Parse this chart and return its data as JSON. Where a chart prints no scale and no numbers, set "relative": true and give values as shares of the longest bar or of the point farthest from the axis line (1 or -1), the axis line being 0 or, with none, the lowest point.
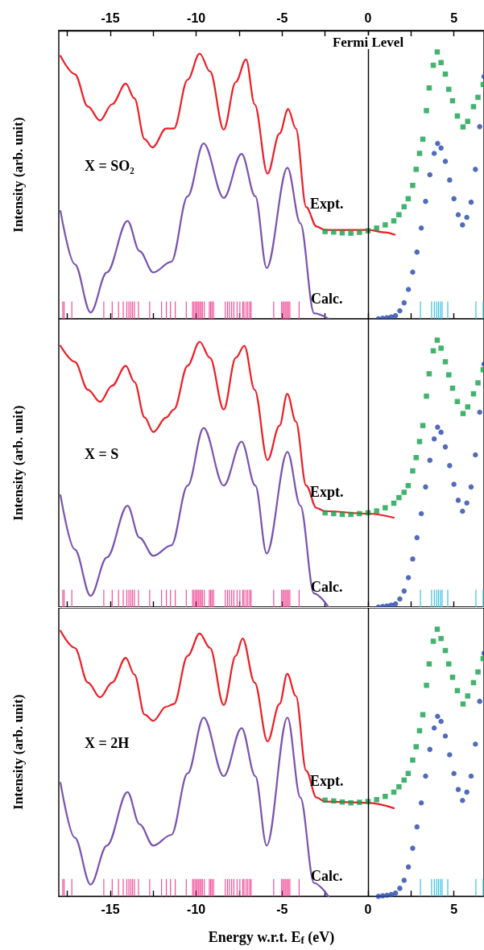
{
  "chart_data": [
    {
      "type": "line",
      "relative": true,
      "tick_labels": "x",
      "ylabel": "Intensity (arb. unit)",
      "xlim": [
        -18,
        6.75
      ],
      "xticks": [
        {
          "value": -17.5,
          "label": null
        },
        -15,
        {
          "value": -12.5,
          "label": null
        },
        -10,
        {
          "value": -7.5,
          "label": null
        },
        -5,
        {
          "value": -2.5,
          "label": null
        },
        0,
        {
          "value": 2.5,
          "label": null
        },
        5
      ],
      "annotations": [
        "X = SO₂",
        "Expt.",
        "Calc."
      ],
      "ref_lines": [
        {
          "axis": "x",
          "value": 0,
          "label": "Fermi Level",
          "color": "#000000"
        }
      ],
      "series": [
        {
          "color": "#ee1c24",
          "marker": "none",
          "x": [
            -17.9,
            -17.07,
            -16.3,
            -15.6,
            -14.9,
            -14.1,
            -13.6,
            -13.0,
            -12.55,
            -11.75,
            -11.3,
            -10.5,
            -9.8,
            -9.2,
            -8.4,
            -7.7,
            -7.1,
            -6.6,
            -5.85,
            -5.15,
            -4.65,
            -4.2,
            -3.6,
            -3.0,
            -2.5,
            0,
            1.0,
            1.55
          ],
          "values": [
            0.985,
            0.917,
            0.795,
            0.743,
            0.804,
            0.881,
            0.826,
            0.673,
            0.642,
            0.713,
            0.713,
            0.896,
            0.994,
            0.927,
            0.709,
            0.887,
            0.972,
            0.804,
            0.544,
            0.694,
            0.786,
            0.713,
            0.419,
            0.346,
            0.333,
            0.333,
            0.324,
            0.315
          ]
        },
        {
          "color": "#7a52b0",
          "marker": "none",
          "x": [
            -17.9,
            -17.07,
            -16.15,
            -15.2,
            -14.0,
            -13.3,
            -12.5,
            -11.45,
            -10.5,
            -9.57,
            -8.4,
            -7.36,
            -6.56,
            -5.9,
            -4.69,
            -3.94,
            -3.14,
            -2.3
          ],
          "values": [
            0.404,
            0.205,
            0.024,
            0.174,
            0.367,
            0.254,
            0.174,
            0.214,
            0.459,
            0.657,
            0.453,
            0.618,
            0.459,
            0.19,
            0.566,
            0.358,
            0.021,
            0
          ]
        },
        {
          "type": "scatter",
          "color": "#13a04b",
          "marker": "square",
          "x": [
            -2.5,
            -2.0,
            -1.5,
            -1.0,
            -0.5,
            0,
            0.5,
            1.0,
            1.5,
            1.8,
            2.1,
            2.34,
            2.6,
            2.8,
            3.0,
            3.19,
            3.4,
            3.56,
            3.8,
            4.03,
            4.25,
            4.5,
            4.7,
            4.92,
            5.2,
            5.53,
            5.8,
            6.14,
            6.4,
            6.7
          ],
          "values": [
            0.327,
            0.325,
            0.322,
            0.321,
            0.324,
            0.33,
            0.34,
            0.352,
            0.367,
            0.39,
            0.42,
            0.45,
            0.5,
            0.56,
            0.62,
            0.673,
            0.78,
            0.865,
            0.95,
            1.0,
            0.96,
            0.917,
            0.86,
            0.817,
            0.76,
            0.719,
            0.74,
            0.795,
            0.83,
            0.878
          ]
        },
        {
          "type": "scatter",
          "color": "#2446a8",
          "marker": "circle",
          "x": [
            0.6,
            0.85,
            1.1,
            1.35,
            1.6,
            1.85,
            2.1,
            2.35,
            2.6,
            2.85,
            3.1,
            3.35,
            3.6,
            3.85,
            4.05,
            4.25,
            4.5,
            4.75,
            5.0,
            5.25,
            5.5,
            5.75,
            6.0,
            6.25,
            6.5,
            6.75
          ],
          "values": [
            0,
            0.002,
            0.004,
            0.007,
            0.012,
            0.03,
            0.06,
            0.11,
            0.175,
            0.25,
            0.34,
            0.44,
            0.54,
            0.62,
            0.657,
            0.64,
            0.59,
            0.52,
            0.45,
            0.39,
            0.352,
            0.38,
            0.437,
            0.56,
            0.72,
            0.908
          ]
        },
        {
          "type": "bar",
          "color": "#f0509a",
          "x": [
            -17.77,
            -17.69,
            -17.24,
            -15.38,
            -14.89,
            -14.52,
            -14.25,
            -14.04,
            -13.92,
            -13.81,
            -13.71,
            -13.6,
            -13.36,
            -12.71,
            -12.02,
            -11.74,
            -11.5,
            -11.22,
            -10.58,
            -10.21,
            -10.13,
            -10.04,
            -9.96,
            -9.88,
            -9.8,
            -9.72,
            -9.64,
            -9.53,
            -9.24,
            -9.16,
            -9.08,
            -8.99,
            -8.31,
            -8.18,
            -8.07,
            -7.94,
            -7.81,
            -7.62,
            -7.46,
            -7.29,
            -7.22,
            -7.1,
            -7.0,
            -6.89,
            -6.81,
            -5.49,
            -5.03,
            -4.95,
            -4.87,
            -4.79,
            -4.71,
            -4.63,
            -4.55,
            -4.01
          ],
          "values": [
            0.065,
            0.065,
            0.065,
            0.065,
            0.065,
            0.065,
            0.065,
            0.065,
            0.065,
            0.065,
            0.065,
            0.065,
            0.065,
            0.065,
            0.065,
            0.065,
            0.065,
            0.065,
            0.065,
            0.065,
            0.065,
            0.065,
            0.065,
            0.065,
            0.065,
            0.065,
            0.065,
            0.065,
            0.065,
            0.065,
            0.065,
            0.065,
            0.065,
            0.065,
            0.065,
            0.065,
            0.065,
            0.065,
            0.065,
            0.065,
            0.065,
            0.065,
            0.065,
            0.065,
            0.065,
            0.065,
            0.065,
            0.065,
            0.065,
            0.065,
            0.065,
            0.065,
            0.065,
            0.065
          ]
        },
        {
          "type": "bar",
          "color": "#3cc0de",
          "x": [
            3.05,
            3.7,
            3.86,
            3.99,
            4.1,
            4.21,
            4.31,
            4.64,
            6.28,
            6.7
          ],
          "values": [
            0.065,
            0.065,
            0.065,
            0.065,
            0.065,
            0.065,
            0.065,
            0.065,
            0.065,
            0.065
          ]
        }
      ]
    },
    {
      "type": "line",
      "relative": true,
      "tick_labels": false,
      "ylabel": "Intensity (arb. unit)",
      "xlim": [
        -18,
        6.75
      ],
      "xticks": [
        {
          "value": -17.5,
          "label": null
        },
        -15,
        {
          "value": -12.5,
          "label": null
        },
        -10,
        {
          "value": -7.5,
          "label": null
        },
        -5,
        {
          "value": -2.5,
          "label": null
        },
        0,
        {
          "value": 2.5,
          "label": null
        },
        5
      ],
      "annotations": [
        "X = S",
        "Expt.",
        "Calc."
      ],
      "ref_lines": [
        {
          "axis": "x",
          "value": 0,
          "color": "#000000"
        }
      ],
      "series": [
        {
          "color": "#ee1c24",
          "marker": "none",
          "x": [
            -17.9,
            -17.07,
            -16.3,
            -15.6,
            -14.9,
            -14.1,
            -13.6,
            -13.0,
            -12.5,
            -11.75,
            -11.3,
            -10.5,
            -9.8,
            -9.2,
            -8.4,
            -7.7,
            -7.2,
            -6.6,
            -5.85,
            -5.15,
            -4.7,
            -4.2,
            -3.6,
            -3.0,
            -2.5,
            0,
            1.5
          ],
          "values": [
            0.979,
            0.919,
            0.814,
            0.769,
            0.829,
            0.904,
            0.844,
            0.71,
            0.656,
            0.71,
            0.74,
            0.904,
            0.994,
            0.934,
            0.74,
            0.934,
            0.979,
            0.814,
            0.551,
            0.68,
            0.799,
            0.695,
            0.455,
            0.371,
            0.359,
            0.35,
            0.335
          ]
        },
        {
          "color": "#7a52b0",
          "marker": "none",
          "x": [
            -17.9,
            -17.07,
            -16.15,
            -15.2,
            -14.0,
            -13.3,
            -12.5,
            -11.45,
            -10.5,
            -9.57,
            -8.4,
            -7.36,
            -6.56,
            -5.9,
            -4.69,
            -3.94,
            -3.14,
            -2.3
          ],
          "values": [
            0.419,
            0.216,
            0.042,
            0.186,
            0.38,
            0.26,
            0.192,
            0.231,
            0.455,
            0.671,
            0.455,
            0.62,
            0.455,
            0.201,
            0.581,
            0.38,
            0.051,
            0
          ]
        },
        {
          "type": "scatter",
          "color": "#13a04b",
          "marker": "square",
          "x": [
            -2.5,
            -2.0,
            -1.5,
            -1.0,
            -0.5,
            0,
            0.5,
            1.0,
            1.5,
            1.8,
            2.1,
            2.34,
            2.6,
            2.8,
            3.0,
            3.19,
            3.4,
            3.56,
            3.8,
            4.03,
            4.25,
            4.5,
            4.7,
            4.92,
            5.2,
            5.53,
            5.8,
            6.14,
            6.4,
            6.7
          ],
          "values": [
            0.353,
            0.35,
            0.347,
            0.347,
            0.35,
            0.353,
            0.36,
            0.372,
            0.389,
            0.41,
            0.43,
            0.455,
            0.51,
            0.56,
            0.62,
            0.68,
            0.79,
            0.874,
            0.96,
            1.0,
            0.97,
            0.919,
            0.87,
            0.82,
            0.77,
            0.725,
            0.75,
            0.799,
            0.84,
            0.889
          ]
        },
        {
          "type": "scatter",
          "color": "#2446a8",
          "marker": "circle",
          "x": [
            0.6,
            0.85,
            1.1,
            1.35,
            1.6,
            1.85,
            2.1,
            2.35,
            2.6,
            2.85,
            3.1,
            3.35,
            3.6,
            3.85,
            4.05,
            4.25,
            4.5,
            4.75,
            5.0,
            5.25,
            5.5,
            5.75,
            6.0,
            6.25,
            6.5,
            6.75
          ],
          "values": [
            0,
            0.002,
            0.004,
            0.007,
            0.012,
            0.03,
            0.06,
            0.11,
            0.18,
            0.26,
            0.35,
            0.45,
            0.55,
            0.63,
            0.674,
            0.655,
            0.6,
            0.53,
            0.46,
            0.4,
            0.359,
            0.39,
            0.45,
            0.57,
            0.73,
            0.91
          ]
        },
        {
          "type": "bar",
          "color": "#f0509a",
          "x": [
            -17.77,
            -17.69,
            -17.24,
            -15.38,
            -14.89,
            -14.52,
            -14.25,
            -14.04,
            -13.92,
            -13.81,
            -13.71,
            -13.6,
            -13.36,
            -12.71,
            -12.02,
            -11.74,
            -11.5,
            -11.22,
            -10.58,
            -10.21,
            -10.13,
            -10.04,
            -9.96,
            -9.88,
            -9.8,
            -9.72,
            -9.64,
            -9.53,
            -9.24,
            -9.16,
            -9.08,
            -8.99,
            -8.31,
            -8.18,
            -8.07,
            -7.94,
            -7.81,
            -7.62,
            -7.46,
            -7.29,
            -7.22,
            -7.1,
            -7.0,
            -6.89,
            -6.81,
            -5.49,
            -5.03,
            -4.95,
            -4.87,
            -4.79,
            -4.71,
            -4.63,
            -4.55,
            -4.01
          ],
          "values": [
            0.065,
            0.065,
            0.065,
            0.065,
            0.065,
            0.065,
            0.065,
            0.065,
            0.065,
            0.065,
            0.065,
            0.065,
            0.065,
            0.065,
            0.065,
            0.065,
            0.065,
            0.065,
            0.065,
            0.065,
            0.065,
            0.065,
            0.065,
            0.065,
            0.065,
            0.065,
            0.065,
            0.065,
            0.065,
            0.065,
            0.065,
            0.065,
            0.065,
            0.065,
            0.065,
            0.065,
            0.065,
            0.065,
            0.065,
            0.065,
            0.065,
            0.065,
            0.065,
            0.065,
            0.065,
            0.065,
            0.065,
            0.065,
            0.065,
            0.065,
            0.065,
            0.065,
            0.065,
            0.065
          ]
        },
        {
          "type": "bar",
          "color": "#3cc0de",
          "x": [
            3.05,
            3.7,
            3.86,
            3.99,
            4.1,
            4.21,
            4.31,
            4.64,
            6.28,
            6.7
          ],
          "values": [
            0.065,
            0.065,
            0.065,
            0.065,
            0.065,
            0.065,
            0.065,
            0.065,
            0.065,
            0.065
          ]
        }
      ]
    },
    {
      "type": "line",
      "relative": true,
      "tick_labels": "x",
      "ylabel": "Intensity (arb. unit)",
      "xlabel": "Energy w.r.t. E$_{f}$ (eV)",
      "xlim": [
        -18,
        6.75
      ],
      "xticks": [
        {
          "value": -17.5,
          "label": null
        },
        -15,
        {
          "value": -12.5,
          "label": null
        },
        -10,
        {
          "value": -7.5,
          "label": null
        },
        -5,
        {
          "value": -2.5,
          "label": null
        },
        0,
        {
          "value": 2.5,
          "label": null
        },
        5
      ],
      "annotations": [
        "X = 2H",
        "Expt.",
        "Calc."
      ],
      "ref_lines": [
        {
          "axis": "x",
          "value": 0,
          "color": "#000000"
        }
      ],
      "series": [
        {
          "color": "#ee1c24",
          "marker": "none",
          "x": [
            -17.9,
            -17.07,
            -16.3,
            -15.6,
            -14.9,
            -14.1,
            -13.6,
            -13.0,
            -12.5,
            -11.75,
            -11.3,
            -10.5,
            -9.8,
            -9.2,
            -8.4,
            -7.7,
            -7.3,
            -6.6,
            -5.85,
            -5.15,
            -4.7,
            -4.2,
            -3.6,
            -3.0,
            -2.5,
            0,
            1.5
          ],
          "values": [
            0.994,
            0.93,
            0.8,
            0.745,
            0.8,
            0.893,
            0.83,
            0.68,
            0.657,
            0.71,
            0.72,
            0.9,
            0.984,
            0.93,
            0.716,
            0.9,
            0.965,
            0.8,
            0.58,
            0.72,
            0.833,
            0.75,
            0.47,
            0.37,
            0.355,
            0.35,
            0.33
          ]
        },
        {
          "color": "#7a52b0",
          "marker": "none",
          "x": [
            -17.9,
            -17.07,
            -16.15,
            -15.2,
            -14.0,
            -13.3,
            -12.5,
            -11.45,
            -10.5,
            -9.57,
            -8.4,
            -7.36,
            -6.56,
            -5.9,
            -4.69,
            -3.94,
            -3.14,
            -2.3
          ],
          "values": [
            0.425,
            0.22,
            0.044,
            0.19,
            0.39,
            0.27,
            0.19,
            0.23,
            0.46,
            0.669,
            0.45,
            0.63,
            0.45,
            0.19,
            0.669,
            0.37,
            0.05,
            0
          ]
        },
        {
          "type": "scatter",
          "color": "#13a04b",
          "marker": "square",
          "x": [
            -2.5,
            -2.0,
            -1.5,
            -1.0,
            -0.5,
            0,
            0.5,
            1.0,
            1.5,
            1.8,
            2.1,
            2.34,
            2.6,
            2.8,
            3.0,
            3.19,
            3.4,
            3.56,
            3.8,
            4.03,
            4.25,
            4.5,
            4.7,
            4.92,
            5.2,
            5.53,
            5.8,
            6.14,
            6.4,
            6.7
          ],
          "values": [
            0.36,
            0.357,
            0.353,
            0.35,
            0.352,
            0.355,
            0.362,
            0.374,
            0.39,
            0.41,
            0.435,
            0.46,
            0.51,
            0.56,
            0.62,
            0.68,
            0.79,
            0.87,
            0.955,
            1.0,
            0.965,
            0.92,
            0.87,
            0.82,
            0.77,
            0.72,
            0.75,
            0.8,
            0.84,
            0.89
          ]
        },
        {
          "type": "scatter",
          "color": "#2446a8",
          "marker": "circle",
          "x": [
            0.6,
            0.85,
            1.1,
            1.35,
            1.6,
            1.85,
            2.1,
            2.35,
            2.6,
            2.85,
            3.1,
            3.35,
            3.6,
            3.85,
            4.05,
            4.25,
            4.5,
            4.75,
            5.0,
            5.25,
            5.5,
            5.75,
            6.0,
            6.25,
            6.5,
            6.75
          ],
          "values": [
            0,
            0.002,
            0.004,
            0.007,
            0.012,
            0.03,
            0.06,
            0.11,
            0.18,
            0.26,
            0.35,
            0.45,
            0.55,
            0.63,
            0.674,
            0.655,
            0.6,
            0.53,
            0.46,
            0.4,
            0.359,
            0.39,
            0.45,
            0.57,
            0.73,
            0.91
          ]
        },
        {
          "type": "bar",
          "color": "#f0509a",
          "x": [
            -17.77,
            -17.69,
            -17.24,
            -15.38,
            -14.89,
            -14.52,
            -14.25,
            -14.04,
            -13.92,
            -13.81,
            -13.71,
            -13.6,
            -13.36,
            -12.71,
            -12.02,
            -11.74,
            -11.5,
            -11.22,
            -10.58,
            -10.21,
            -10.13,
            -10.04,
            -9.96,
            -9.88,
            -9.8,
            -9.72,
            -9.64,
            -9.53,
            -9.24,
            -9.16,
            -9.08,
            -8.99,
            -8.31,
            -8.18,
            -8.07,
            -7.94,
            -7.81,
            -7.62,
            -7.46,
            -7.29,
            -7.22,
            -7.1,
            -7.0,
            -6.89,
            -6.81,
            -5.49,
            -5.03,
            -4.95,
            -4.87,
            -4.79,
            -4.71,
            -4.63,
            -4.55,
            -4.01
          ],
          "values": [
            0.065,
            0.065,
            0.065,
            0.065,
            0.065,
            0.065,
            0.065,
            0.065,
            0.065,
            0.065,
            0.065,
            0.065,
            0.065,
            0.065,
            0.065,
            0.065,
            0.065,
            0.065,
            0.065,
            0.065,
            0.065,
            0.065,
            0.065,
            0.065,
            0.065,
            0.065,
            0.065,
            0.065,
            0.065,
            0.065,
            0.065,
            0.065,
            0.065,
            0.065,
            0.065,
            0.065,
            0.065,
            0.065,
            0.065,
            0.065,
            0.065,
            0.065,
            0.065,
            0.065,
            0.065,
            0.065,
            0.065,
            0.065,
            0.065,
            0.065,
            0.065,
            0.065,
            0.065,
            0.065
          ]
        },
        {
          "type": "bar",
          "color": "#3cc0de",
          "x": [
            3.05,
            3.7,
            3.86,
            3.99,
            4.1,
            4.21,
            4.31,
            4.64,
            6.28,
            6.7
          ],
          "values": [
            0.065,
            0.065,
            0.065,
            0.065,
            0.065,
            0.065,
            0.065,
            0.065,
            0.065,
            0.065
          ]
        }
      ]
    }
  ]
}
